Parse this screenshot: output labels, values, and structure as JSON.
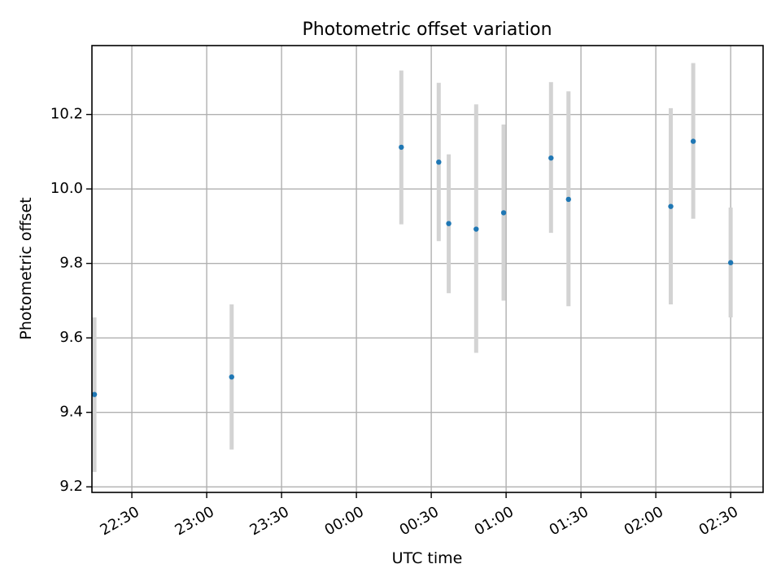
{
  "chart_data": {
    "type": "scatter",
    "title": "Photometric offset variation",
    "xlabel": "UTC time",
    "ylabel": "Photometric offset",
    "x_axis_kind": "time",
    "xlim": [
      "22:14",
      "02:43"
    ],
    "ylim": [
      9.185,
      10.385
    ],
    "x_ticks": [
      "22:30",
      "23:00",
      "23:30",
      "00:00",
      "00:30",
      "01:00",
      "01:30",
      "02:00",
      "02:30"
    ],
    "y_ticks": [
      9.2,
      9.4,
      9.6,
      9.8,
      10.0,
      10.2
    ],
    "y_tick_labels": [
      "9.2",
      "9.4",
      "9.6",
      "9.8",
      "10.0",
      "10.2"
    ],
    "grid": true,
    "marker_color": "#1f77b4",
    "errorbar_color": "#d3d3d3",
    "points": [
      {
        "t": "22:15",
        "y": 9.448,
        "ylow": 9.24,
        "yhigh": 9.655
      },
      {
        "t": "23:10",
        "y": 9.495,
        "ylow": 9.3,
        "yhigh": 9.69
      },
      {
        "t": "00:18",
        "y": 10.112,
        "ylow": 9.905,
        "yhigh": 10.318
      },
      {
        "t": "00:33",
        "y": 10.072,
        "ylow": 9.86,
        "yhigh": 10.285
      },
      {
        "t": "00:37",
        "y": 9.907,
        "ylow": 9.72,
        "yhigh": 10.093
      },
      {
        "t": "00:48",
        "y": 9.892,
        "ylow": 9.56,
        "yhigh": 10.227
      },
      {
        "t": "00:59",
        "y": 9.936,
        "ylow": 9.7,
        "yhigh": 10.173
      },
      {
        "t": "01:18",
        "y": 10.083,
        "ylow": 9.882,
        "yhigh": 10.287
      },
      {
        "t": "01:25",
        "y": 9.972,
        "ylow": 9.685,
        "yhigh": 10.262
      },
      {
        "t": "02:06",
        "y": 9.953,
        "ylow": 9.69,
        "yhigh": 10.217
      },
      {
        "t": "02:15",
        "y": 10.128,
        "ylow": 9.92,
        "yhigh": 10.338
      },
      {
        "t": "02:30",
        "y": 9.802,
        "ylow": 9.655,
        "yhigh": 9.95
      }
    ]
  }
}
